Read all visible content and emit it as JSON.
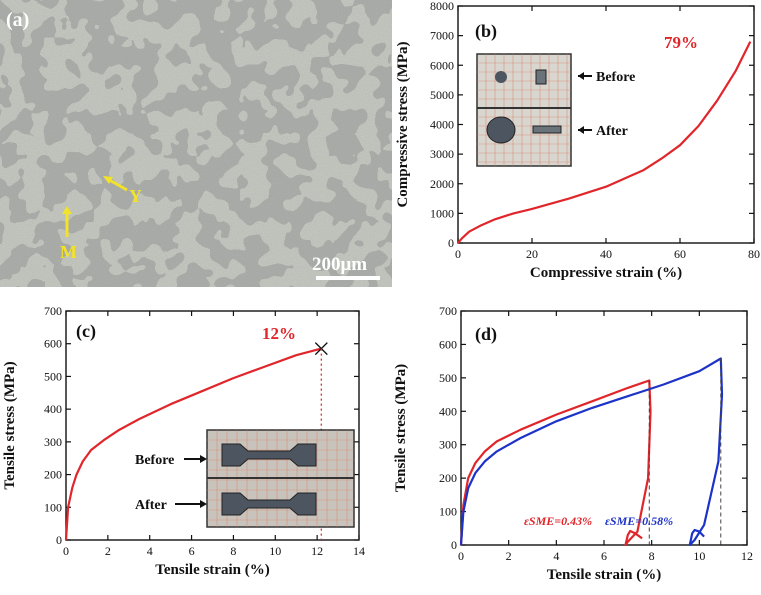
{
  "panel_a": {
    "label": "(a)",
    "phase_labels": [
      "Y",
      "M"
    ],
    "scale_bar": "200μm",
    "colors": {
      "matrix": "#c9ccc4",
      "phase": "#6f706c",
      "annotation": "#f2e22a"
    }
  },
  "chart_data": [
    {
      "panel": "(b)",
      "type": "line",
      "xlabel": "Compressive strain (%)",
      "ylabel": "Compressive stress (MPa)",
      "xlim": [
        0,
        80
      ],
      "ylim": [
        0,
        8000
      ],
      "xticks": [
        0,
        20,
        40,
        60,
        80
      ],
      "yticks": [
        0,
        1000,
        2000,
        3000,
        4000,
        5000,
        6000,
        7000,
        8000
      ],
      "series": [
        {
          "color": "#e0262b",
          "x": [
            0,
            1,
            3,
            6,
            10,
            15,
            20,
            30,
            40,
            50,
            55,
            60,
            65,
            70,
            75,
            79
          ],
          "y": [
            0,
            150,
            380,
            580,
            800,
            1000,
            1150,
            1500,
            1900,
            2450,
            2850,
            3300,
            3950,
            4800,
            5800,
            6800
          ]
        }
      ],
      "annotations": [
        {
          "text": "79%",
          "color": "#e0262b"
        }
      ],
      "inset_labels": [
        "Before",
        "After"
      ],
      "grid": false
    },
    {
      "panel": "(c)",
      "type": "line",
      "xlabel": "Tensile strain (%)",
      "ylabel": "Tensile stress (MPa)",
      "xlim": [
        0,
        14
      ],
      "ylim": [
        0,
        700
      ],
      "xticks": [
        0,
        2,
        4,
        6,
        8,
        10,
        12,
        14
      ],
      "yticks": [
        0,
        100,
        200,
        300,
        400,
        500,
        600,
        700
      ],
      "series": [
        {
          "color": "#e0262b",
          "x": [
            0,
            0.1,
            0.3,
            0.5,
            0.8,
            1.2,
            1.8,
            2.5,
            3.5,
            5,
            6.5,
            8,
            9.5,
            11,
            12.2
          ],
          "y": [
            0,
            100,
            160,
            200,
            240,
            275,
            305,
            335,
            370,
            415,
            455,
            495,
            530,
            565,
            585
          ]
        }
      ],
      "fracture_point": {
        "x": 12.2,
        "y": 585
      },
      "annotations": [
        {
          "text": "12%",
          "color": "#e0262b"
        }
      ],
      "inset_labels": [
        "Before",
        "After"
      ],
      "grid": false
    },
    {
      "panel": "(d)",
      "type": "line",
      "xlabel": "Tensile strain (%)",
      "ylabel": "Tensile stress (MPa)",
      "xlim": [
        0,
        12
      ],
      "ylim": [
        0,
        700
      ],
      "xticks": [
        0,
        2,
        4,
        6,
        8,
        10,
        12
      ],
      "yticks": [
        0,
        100,
        200,
        300,
        400,
        500,
        600,
        700
      ],
      "series": [
        {
          "color": "#e0262b",
          "x": [
            0,
            0.1,
            0.3,
            0.6,
            1,
            1.5,
            2.5,
            4,
            5.5,
            7,
            7.9,
            7.95,
            7.85,
            7.4,
            7.0,
            6.9,
            7.0,
            7.1,
            7.3,
            7.6
          ],
          "y": [
            0,
            120,
            200,
            245,
            280,
            310,
            345,
            390,
            430,
            470,
            492,
            400,
            200,
            40,
            10,
            0,
            30,
            42,
            35,
            20
          ]
        },
        {
          "color": "#1c33c8",
          "x": [
            0,
            0.1,
            0.3,
            0.6,
            1,
            1.5,
            2.5,
            4,
            5.5,
            7,
            8.5,
            10,
            10.9,
            10.95,
            10.8,
            10.2,
            9.8,
            9.6,
            9.7,
            9.8,
            10.0,
            10.2
          ],
          "y": [
            0,
            100,
            170,
            215,
            250,
            280,
            320,
            370,
            410,
            445,
            480,
            520,
            558,
            450,
            250,
            60,
            15,
            0,
            35,
            45,
            40,
            25
          ]
        }
      ],
      "dashed_lines_x": [
        7.9,
        10.9
      ],
      "annotations": [
        {
          "text": "εSME=0.43%",
          "color": "#e0262b"
        },
        {
          "text": "εSME=0.58%",
          "color": "#1c33c8"
        }
      ],
      "grid": false
    }
  ]
}
